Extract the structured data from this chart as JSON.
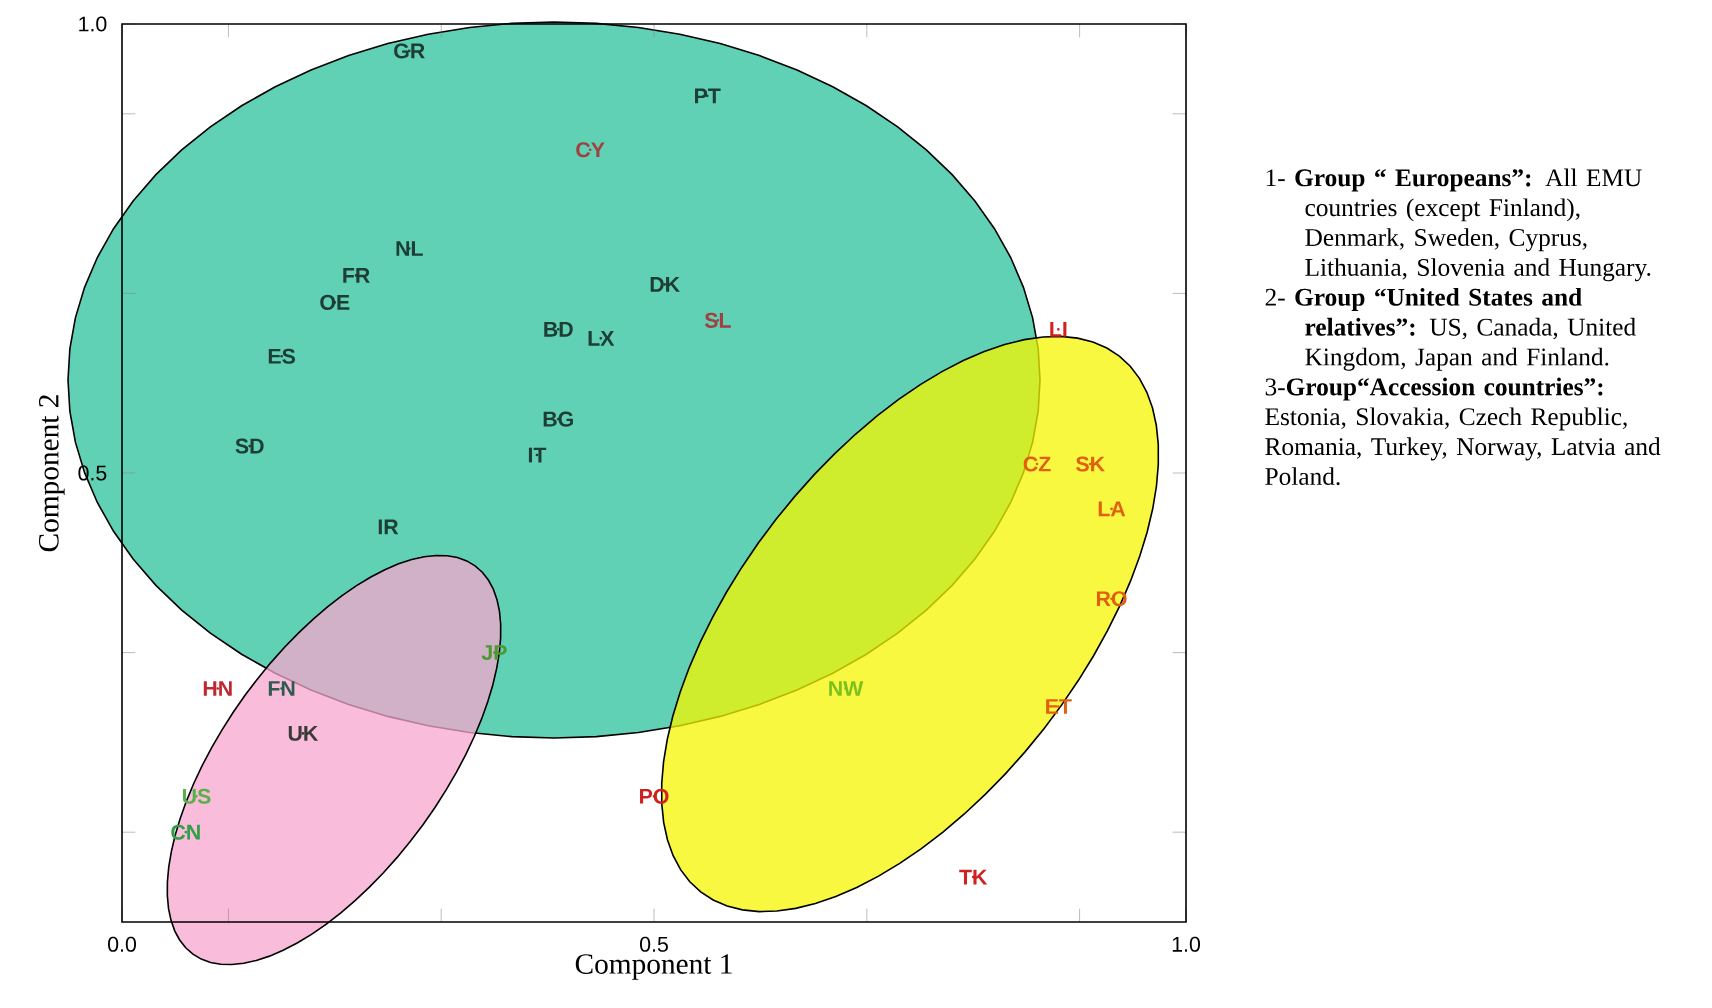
{
  "chart_data": {
    "type": "scatter",
    "xlabel": "Component 1",
    "ylabel": "Component 2",
    "xlim": [
      0,
      1
    ],
    "ylim": [
      0,
      1
    ],
    "xticks": [
      {
        "value": 0,
        "label": "0.0"
      },
      {
        "value": 0.1,
        "label": null
      },
      {
        "value": 0.3,
        "label": null
      },
      0.5,
      {
        "value": 0.7,
        "label": null
      },
      {
        "value": 0.9,
        "label": null
      },
      {
        "value": 1,
        "label": "1.0"
      }
    ],
    "yticks": [
      {
        "value": 0.1,
        "label": null
      },
      {
        "value": 0.3,
        "label": null
      },
      0.5,
      {
        "value": 0.7,
        "label": null
      },
      {
        "value": 0.9,
        "label": null
      },
      {
        "value": 1,
        "label": "1.0"
      }
    ],
    "grid": false,
    "series": [
      {
        "name": "GR",
        "color": "#1e3d35",
        "x": [
          0.27
        ],
        "values": [
          0.97
        ]
      },
      {
        "name": "PT",
        "color": "#1e3d35",
        "x": [
          0.55
        ],
        "values": [
          0.92
        ]
      },
      {
        "name": "CY",
        "color": "#a04040",
        "x": [
          0.44
        ],
        "values": [
          0.86
        ]
      },
      {
        "name": "NL",
        "color": "#1e3d35",
        "x": [
          0.27
        ],
        "values": [
          0.75
        ]
      },
      {
        "name": "FR",
        "color": "#1e3d35",
        "x": [
          0.22
        ],
        "values": [
          0.72
        ]
      },
      {
        "name": "OE",
        "color": "#1e3d35",
        "x": [
          0.2
        ],
        "values": [
          0.69
        ]
      },
      {
        "name": "DK",
        "color": "#1e3d35",
        "x": [
          0.51
        ],
        "values": [
          0.71
        ]
      },
      {
        "name": "SL",
        "color": "#a04040",
        "x": [
          0.56
        ],
        "values": [
          0.67
        ]
      },
      {
        "name": "BD",
        "color": "#1e3d35",
        "x": [
          0.41
        ],
        "values": [
          0.66
        ]
      },
      {
        "name": "LX",
        "color": "#1e3d35",
        "x": [
          0.45
        ],
        "values": [
          0.65
        ]
      },
      {
        "name": "ES",
        "color": "#1e3d35",
        "x": [
          0.15
        ],
        "values": [
          0.63
        ]
      },
      {
        "name": "BG",
        "color": "#1e3d35",
        "x": [
          0.41
        ],
        "values": [
          0.56
        ]
      },
      {
        "name": "SD",
        "color": "#1e3d35",
        "x": [
          0.12
        ],
        "values": [
          0.53
        ]
      },
      {
        "name": "IT",
        "color": "#1e3d35",
        "x": [
          0.39
        ],
        "values": [
          0.52
        ]
      },
      {
        "name": "IR",
        "color": "#1e3d35",
        "x": [
          0.25
        ],
        "values": [
          0.44
        ]
      },
      {
        "name": "LI",
        "color": "#d02020",
        "x": [
          0.88
        ],
        "values": [
          0.66
        ]
      },
      {
        "name": "CZ",
        "color": "#e06010",
        "x": [
          0.86
        ],
        "values": [
          0.51
        ]
      },
      {
        "name": "SK",
        "color": "#e06010",
        "x": [
          0.91
        ],
        "values": [
          0.51
        ]
      },
      {
        "name": "LA",
        "color": "#e06010",
        "x": [
          0.93
        ],
        "values": [
          0.46
        ]
      },
      {
        "name": "RO",
        "color": "#e06010",
        "x": [
          0.93
        ],
        "values": [
          0.36
        ]
      },
      {
        "name": "ET",
        "color": "#e06010",
        "x": [
          0.88
        ],
        "values": [
          0.24
        ]
      },
      {
        "name": "NW",
        "color": "#7ac020",
        "x": [
          0.68
        ],
        "values": [
          0.26
        ]
      },
      {
        "name": "PO",
        "color": "#d02020",
        "x": [
          0.5
        ],
        "values": [
          0.14
        ]
      },
      {
        "name": "TK",
        "color": "#d02020",
        "x": [
          0.8
        ],
        "values": [
          0.05
        ]
      },
      {
        "name": "JP",
        "color": "#4a9a30",
        "x": [
          0.35
        ],
        "values": [
          0.3
        ]
      },
      {
        "name": "HN",
        "color": "#c02830",
        "x": [
          0.09
        ],
        "values": [
          0.26
        ]
      },
      {
        "name": "FN",
        "color": "#2e5a50",
        "x": [
          0.15
        ],
        "values": [
          0.26
        ]
      },
      {
        "name": "UK",
        "color": "#3a3a3a",
        "x": [
          0.17
        ],
        "values": [
          0.21
        ]
      },
      {
        "name": "US",
        "color": "#5ab048",
        "x": [
          0.07
        ],
        "values": [
          0.14
        ]
      },
      {
        "name": "CN",
        "color": "#2ea043",
        "x": [
          0.06
        ],
        "values": [
          0.1
        ]
      }
    ],
    "annotations": [
      "1- **Group “ Europeans”:** All EMU countries (except Finland), Denmark, Sweden, Cyprus, Lithuania, Slovenia and Hungary.",
      "2- **Group “United States and relatives”:** US, Canada, United Kingdom,  Japan and Finland.",
      "3-**Group“Accession countries”:** Estonia, Slovakia, Czech Republic, Romania, Turkey, Norway, Latvia and Poland."
    ]
  }
}
